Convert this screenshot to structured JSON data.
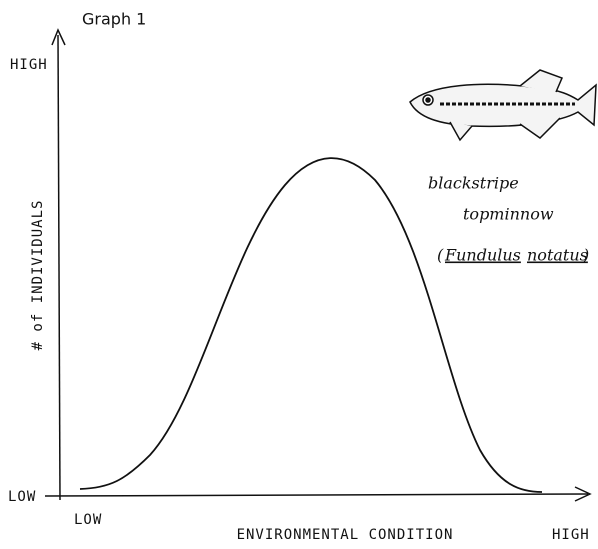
{
  "title": "Graph 1",
  "y_axis": {
    "label": "# of INDIVIDUALS",
    "high": "HIGH",
    "low": "LOW"
  },
  "x_axis": {
    "label": "ENVIRONMENTAL CONDITION",
    "low": "LOW",
    "high": "HIGH"
  },
  "fish": {
    "common_name": [
      "blackstripe",
      "topminnow"
    ],
    "scientific_open": "(",
    "genus": "Fundulus",
    "species": "notatus",
    "scientific_close": ")"
  }
}
